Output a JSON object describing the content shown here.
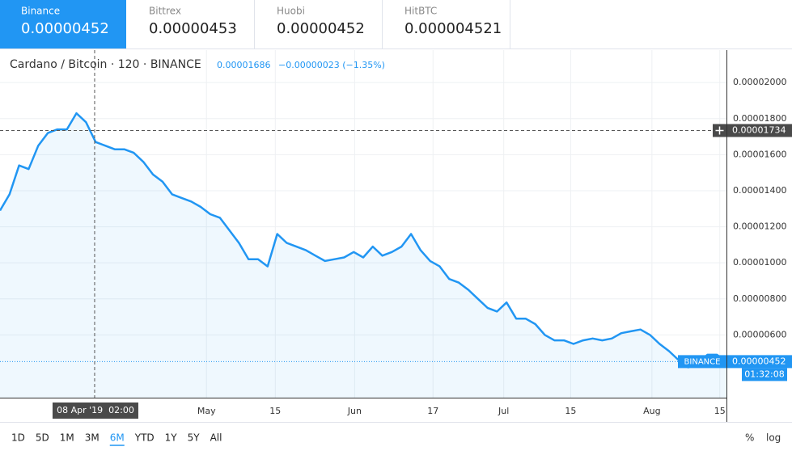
{
  "tabs": [
    {
      "name": "Binance",
      "price": "0.00000452"
    },
    {
      "name": "Bittrex",
      "price": "0.00000453"
    },
    {
      "name": "Huobi",
      "price": "0.00000452"
    },
    {
      "name": "HitBTC",
      "price": "0.000004521"
    }
  ],
  "header": {
    "symbol": "Cardano / Bitcoin · 120 · BINANCE",
    "price": "0.00001686",
    "change": "−0.00000023 (−1.35%)"
  },
  "chart_data": {
    "type": "area",
    "color": "#2196f3",
    "values": [
      1.29e-05,
      1.38e-05,
      1.54e-05,
      1.52e-05,
      1.65e-05,
      1.72e-05,
      1.74e-05,
      1.74e-05,
      1.83e-05,
      1.78e-05,
      1.67e-05,
      1.65e-05,
      1.63e-05,
      1.63e-05,
      1.61e-05,
      1.56e-05,
      1.49e-05,
      1.45e-05,
      1.38e-05,
      1.36e-05,
      1.34e-05,
      1.31e-05,
      1.27e-05,
      1.25e-05,
      1.18e-05,
      1.11e-05,
      1.02e-05,
      1.02e-05,
      9.8e-06,
      1.16e-05,
      1.11e-05,
      1.09e-05,
      1.07e-05,
      1.04e-05,
      1.01e-05,
      1.02e-05,
      1.03e-05,
      1.06e-05,
      1.03e-05,
      1.09e-05,
      1.04e-05,
      1.06e-05,
      1.09e-05,
      1.16e-05,
      1.07e-05,
      1.01e-05,
      9.8e-06,
      9.1e-06,
      8.9e-06,
      8.5e-06,
      8e-06,
      7.5e-06,
      7.3e-06,
      7.8e-06,
      6.9e-06,
      6.9e-06,
      6.6e-06,
      6e-06,
      5.7e-06,
      5.7e-06,
      5.5e-06,
      5.7e-06,
      5.8e-06,
      5.7e-06,
      5.8e-06,
      6.1e-06,
      6.2e-06,
      6.3e-06,
      6e-06,
      5.5e-06,
      5.1e-06,
      4.6e-06,
      4.2e-06,
      4.4e-06,
      4.9e-06,
      4.9e-06,
      4.52e-06
    ],
    "last_label": "0.00000452",
    "exchange": "BINANCE",
    "countdown": "01:32:08",
    "xlim": [
      0,
      76
    ],
    "xticks": [
      {
        "value": 21.6,
        "label": "May"
      },
      {
        "value": 28.8,
        "label": "15"
      },
      {
        "value": 37.1,
        "label": "Jun"
      },
      {
        "value": 45.3,
        "label": "17"
      },
      {
        "value": 52.7,
        "label": "Jul"
      },
      {
        "value": 59.7,
        "label": "15"
      },
      {
        "value": 68.2,
        "label": "Aug"
      },
      {
        "value": 75.3,
        "label": "15"
      }
    ],
    "ylim": [
      2.52e-06,
      2.18e-05
    ],
    "yticks": [
      {
        "value": 6e-06,
        "label": "0.00000600"
      },
      {
        "value": 8e-06,
        "label": "0.00000800"
      },
      {
        "value": 1e-05,
        "label": "0.00001000"
      },
      {
        "value": 1.2e-05,
        "label": "0.00001200"
      },
      {
        "value": 1.4e-05,
        "label": "0.00001400"
      },
      {
        "value": 1.6e-05,
        "label": "0.00001600"
      },
      {
        "value": 1.8e-05,
        "label": "0.00001800"
      },
      {
        "value": 2e-05,
        "label": "0.00002000"
      }
    ],
    "grid": true,
    "crosshair": {
      "x": 9.9,
      "x_label": "08 Apr '19  02:00",
      "y": {
        "value": 1.734e-05,
        "label": "0.00001734"
      }
    }
  },
  "ranges": [
    "1D",
    "5D",
    "1M",
    "3M",
    "6M",
    "YTD",
    "1Y",
    "5Y",
    "All"
  ],
  "selected_range": "6M",
  "scale_buttons": [
    "%",
    "log"
  ]
}
